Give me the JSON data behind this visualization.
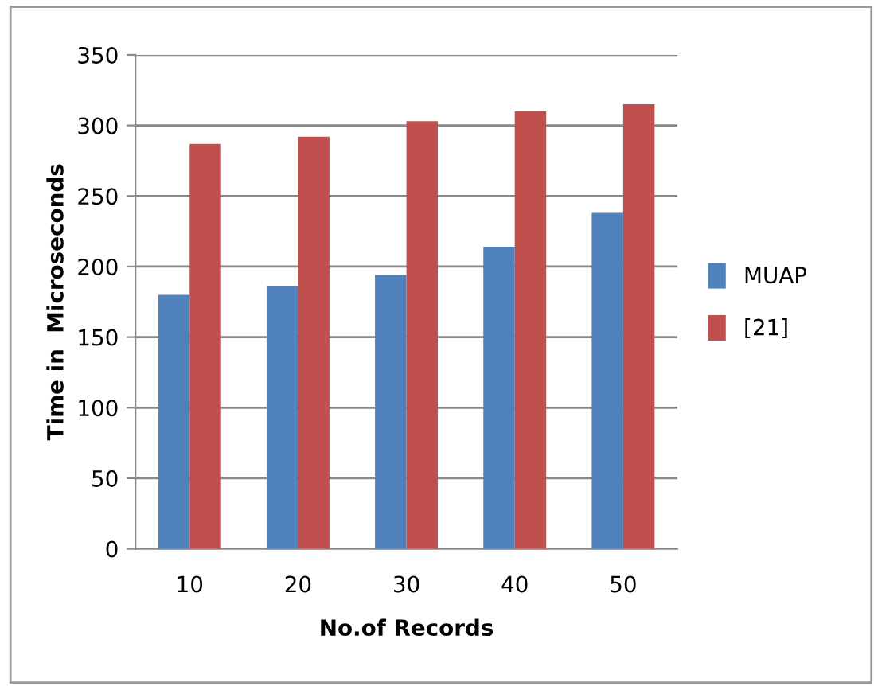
{
  "chart_data": {
    "type": "bar",
    "xlabel": "No.of Records",
    "ylabel": "Time in  Microseconds",
    "categories": [
      "10",
      "20",
      "30",
      "40",
      "50"
    ],
    "series": [
      {
        "name": "MUAP",
        "color": "#4f81bd",
        "values": [
          180,
          186,
          194,
          214,
          238
        ]
      },
      {
        "name": "[21]",
        "color": "#c0504d",
        "values": [
          287,
          292,
          303,
          310,
          315
        ]
      }
    ],
    "ylim": [
      0,
      350
    ],
    "yticks": [
      0,
      50,
      100,
      150,
      200,
      250,
      300,
      350
    ],
    "grid": "y",
    "legend": "right"
  }
}
